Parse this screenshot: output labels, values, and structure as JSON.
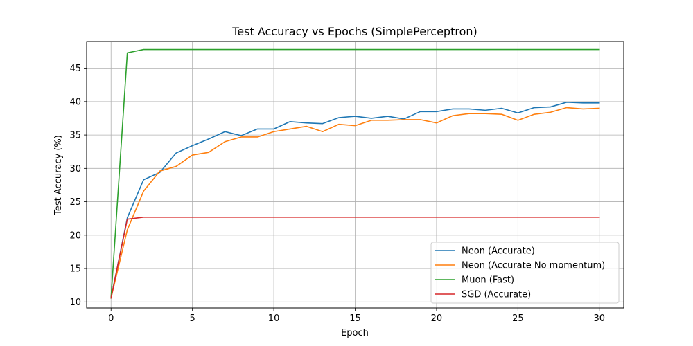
{
  "chart_data": {
    "type": "line",
    "title": "Test Accuracy vs Epochs (SimplePerceptron)",
    "xlabel": "Epoch",
    "ylabel": "Test Accuracy (%)",
    "xlim": [
      -1.5,
      31.5
    ],
    "ylim": [
      9.1,
      49.0
    ],
    "xticks": [
      0,
      5,
      10,
      15,
      20,
      25,
      30
    ],
    "yticks": [
      10,
      15,
      20,
      25,
      30,
      35,
      40,
      45
    ],
    "grid": true,
    "legend_position": "lower-right",
    "x": [
      0,
      1,
      2,
      3,
      4,
      5,
      6,
      7,
      8,
      9,
      10,
      11,
      12,
      13,
      14,
      15,
      16,
      17,
      18,
      19,
      20,
      21,
      22,
      23,
      24,
      25,
      26,
      27,
      28,
      29,
      30
    ],
    "series": [
      {
        "name": "Neon (Accurate)",
        "color": "#1f77b4",
        "values": [
          10.6,
          22.6,
          28.3,
          29.4,
          32.3,
          33.4,
          34.4,
          35.5,
          34.9,
          35.9,
          35.9,
          37.0,
          36.8,
          36.7,
          37.6,
          37.8,
          37.5,
          37.8,
          37.4,
          38.5,
          38.5,
          38.9,
          38.9,
          38.7,
          39.0,
          38.3,
          39.1,
          39.2,
          39.9,
          39.8,
          39.8
        ]
      },
      {
        "name": "Neon (Accurate No momentum)",
        "color": "#ff7f0e",
        "values": [
          10.6,
          20.8,
          26.6,
          29.6,
          30.3,
          32.0,
          32.4,
          34.0,
          34.7,
          34.7,
          35.5,
          35.9,
          36.3,
          35.5,
          36.6,
          36.4,
          37.2,
          37.2,
          37.3,
          37.3,
          36.8,
          37.9,
          38.2,
          38.2,
          38.1,
          37.2,
          38.1,
          38.4,
          39.1,
          38.9,
          39.0
        ]
      },
      {
        "name": "Muon (Fast)",
        "color": "#2ca02c",
        "values": [
          10.6,
          47.3,
          47.8,
          47.8,
          47.8,
          47.8,
          47.8,
          47.8,
          47.8,
          47.8,
          47.8,
          47.8,
          47.8,
          47.8,
          47.8,
          47.8,
          47.8,
          47.8,
          47.8,
          47.8,
          47.8,
          47.8,
          47.8,
          47.8,
          47.8,
          47.8,
          47.8,
          47.8,
          47.8,
          47.8,
          47.8
        ]
      },
      {
        "name": "SGD (Accurate)",
        "color": "#d62728",
        "values": [
          10.6,
          22.4,
          22.7,
          22.7,
          22.7,
          22.7,
          22.7,
          22.7,
          22.7,
          22.7,
          22.7,
          22.7,
          22.7,
          22.7,
          22.7,
          22.7,
          22.7,
          22.7,
          22.7,
          22.7,
          22.7,
          22.7,
          22.7,
          22.7,
          22.7,
          22.7,
          22.7,
          22.7,
          22.7,
          22.7,
          22.7
        ]
      }
    ]
  }
}
